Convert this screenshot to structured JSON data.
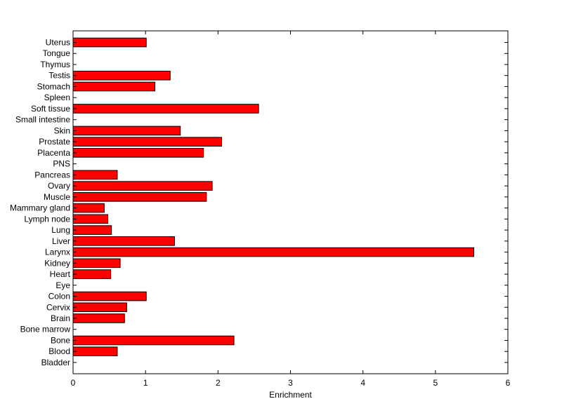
{
  "chart_data": {
    "type": "bar",
    "orientation": "horizontal",
    "title": "",
    "xlabel": "Enrichment",
    "ylabel": "",
    "xlim": [
      0,
      6
    ],
    "xticks": [
      "0",
      "1",
      "2",
      "3",
      "4",
      "5",
      "6"
    ],
    "grid": false,
    "bar_color": "#ff0000",
    "bar_edge_color": "#000000",
    "categories": [
      "Uterus",
      "Tongue",
      "Thymus",
      "Testis",
      "Stomach",
      "Spleen",
      "Soft tissue",
      "Small intestine",
      "Skin",
      "Prostate",
      "Placenta",
      "PNS",
      "Pancreas",
      "Ovary",
      "Muscle",
      "Mammary gland",
      "Lymph node",
      "Lung",
      "Liver",
      "Larynx",
      "Kidney",
      "Heart",
      "Eye",
      "Colon",
      "Cervix",
      "Brain",
      "Bone marrow",
      "Bone",
      "Blood",
      "Bladder"
    ],
    "values": [
      1.01,
      0,
      0,
      1.34,
      1.13,
      0,
      2.56,
      0,
      1.48,
      2.05,
      1.8,
      0,
      0.61,
      1.92,
      1.84,
      0.43,
      0.48,
      0.53,
      1.4,
      5.53,
      0.65,
      0.52,
      0,
      1.01,
      0.74,
      0.71,
      0,
      2.22,
      0.61,
      0
    ]
  }
}
